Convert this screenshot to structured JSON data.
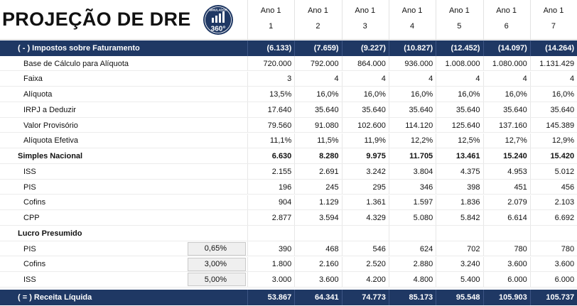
{
  "header": {
    "title": "PROJEÇÃO DE DRE",
    "logo_text_top": "SIMULADOR",
    "logo_text_bottom": "360°",
    "years": [
      {
        "label": "Ano 1",
        "num": "1"
      },
      {
        "label": "Ano 1",
        "num": "2"
      },
      {
        "label": "Ano 1",
        "num": "3"
      },
      {
        "label": "Ano 1",
        "num": "4"
      },
      {
        "label": "Ano 1",
        "num": "5"
      },
      {
        "label": "Ano 1",
        "num": "6"
      },
      {
        "label": "Ano 1",
        "num": "7"
      }
    ]
  },
  "rows": [
    {
      "label": "( - ) Impostos sobre Faturamento",
      "style": "band",
      "indent": false,
      "values": [
        "(6.133)",
        "(7.659)",
        "(9.227)",
        "(10.827)",
        "(12.452)",
        "(14.097)",
        "(14.264)"
      ]
    },
    {
      "label": "Base de Cálculo para Alíquota",
      "style": "normal",
      "indent": true,
      "values": [
        "720.000",
        "792.000",
        "864.000",
        "936.000",
        "1.008.000",
        "1.080.000",
        "1.131.429"
      ]
    },
    {
      "label": "Faixa",
      "style": "normal",
      "indent": true,
      "values": [
        "3",
        "4",
        "4",
        "4",
        "4",
        "4",
        "4"
      ]
    },
    {
      "label": "Alíquota",
      "style": "normal",
      "indent": true,
      "values": [
        "13,5%",
        "16,0%",
        "16,0%",
        "16,0%",
        "16,0%",
        "16,0%",
        "16,0%"
      ]
    },
    {
      "label": "IRPJ a Deduzir",
      "style": "normal",
      "indent": true,
      "values": [
        "17.640",
        "35.640",
        "35.640",
        "35.640",
        "35.640",
        "35.640",
        "35.640"
      ]
    },
    {
      "label": "Valor Provisório",
      "style": "normal",
      "indent": true,
      "values": [
        "79.560",
        "91.080",
        "102.600",
        "114.120",
        "125.640",
        "137.160",
        "145.389"
      ]
    },
    {
      "label": "Alíquota Efetiva",
      "style": "normal",
      "indent": true,
      "values": [
        "11,1%",
        "11,5%",
        "11,9%",
        "12,2%",
        "12,5%",
        "12,7%",
        "12,9%"
      ]
    },
    {
      "label": "Simples Nacional",
      "style": "bold",
      "indent": false,
      "values": [
        "6.630",
        "8.280",
        "9.975",
        "11.705",
        "13.461",
        "15.240",
        "15.420"
      ]
    },
    {
      "label": "ISS",
      "style": "normal",
      "indent": true,
      "values": [
        "2.155",
        "2.691",
        "3.242",
        "3.804",
        "4.375",
        "4.953",
        "5.012"
      ]
    },
    {
      "label": "PIS",
      "style": "normal",
      "indent": true,
      "values": [
        "196",
        "245",
        "295",
        "346",
        "398",
        "451",
        "456"
      ]
    },
    {
      "label": "Cofins",
      "style": "normal",
      "indent": true,
      "values": [
        "904",
        "1.129",
        "1.361",
        "1.597",
        "1.836",
        "2.079",
        "2.103"
      ]
    },
    {
      "label": "CPP",
      "style": "normal",
      "indent": true,
      "values": [
        "2.877",
        "3.594",
        "4.329",
        "5.080",
        "5.842",
        "6.614",
        "6.692"
      ]
    },
    {
      "label": "Lucro Presumido",
      "style": "bold",
      "indent": false,
      "values": [
        "",
        "",
        "",
        "",
        "",
        "",
        ""
      ]
    },
    {
      "label": "PIS",
      "style": "normal",
      "indent": true,
      "rate": "0,65%",
      "values": [
        "390",
        "468",
        "546",
        "624",
        "702",
        "780",
        "780"
      ]
    },
    {
      "label": "Cofins",
      "style": "normal",
      "indent": true,
      "rate": "3,00%",
      "values": [
        "1.800",
        "2.160",
        "2.520",
        "2.880",
        "3.240",
        "3.600",
        "3.600"
      ]
    },
    {
      "label": "ISS",
      "style": "normal",
      "indent": true,
      "rate": "5,00%",
      "values": [
        "3.000",
        "3.600",
        "4.200",
        "4.800",
        "5.400",
        "6.000",
        "6.000"
      ]
    },
    {
      "label": "( = ) Receita Líquida",
      "style": "band",
      "indent": false,
      "values": [
        "53.867",
        "64.341",
        "74.773",
        "85.173",
        "95.548",
        "105.903",
        "105.737"
      ]
    }
  ],
  "colors": {
    "band": "#1f3864",
    "rate_cell": "#efefef"
  }
}
